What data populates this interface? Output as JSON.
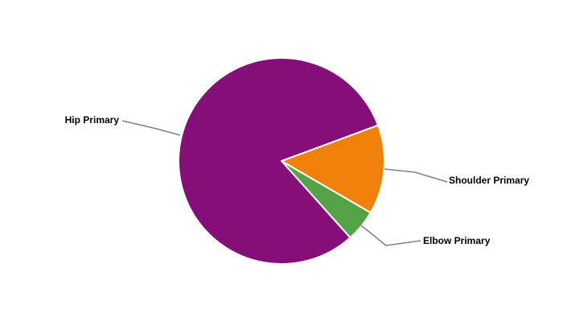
{
  "chart_data": {
    "type": "pie",
    "title": "",
    "slices": [
      {
        "label": "Shoulder Primary",
        "value": 14,
        "color": "#f0800a"
      },
      {
        "label": "Elbow Primary",
        "value": 5,
        "color": "#55a347"
      },
      {
        "label": "Hip Primary",
        "value": 81,
        "color": "#850e79"
      }
    ],
    "start_angle_deg": -20.3,
    "direction": "clockwise",
    "slice_border_color": "#ffffff",
    "leader_line_color": "#808080",
    "legend": "none"
  }
}
